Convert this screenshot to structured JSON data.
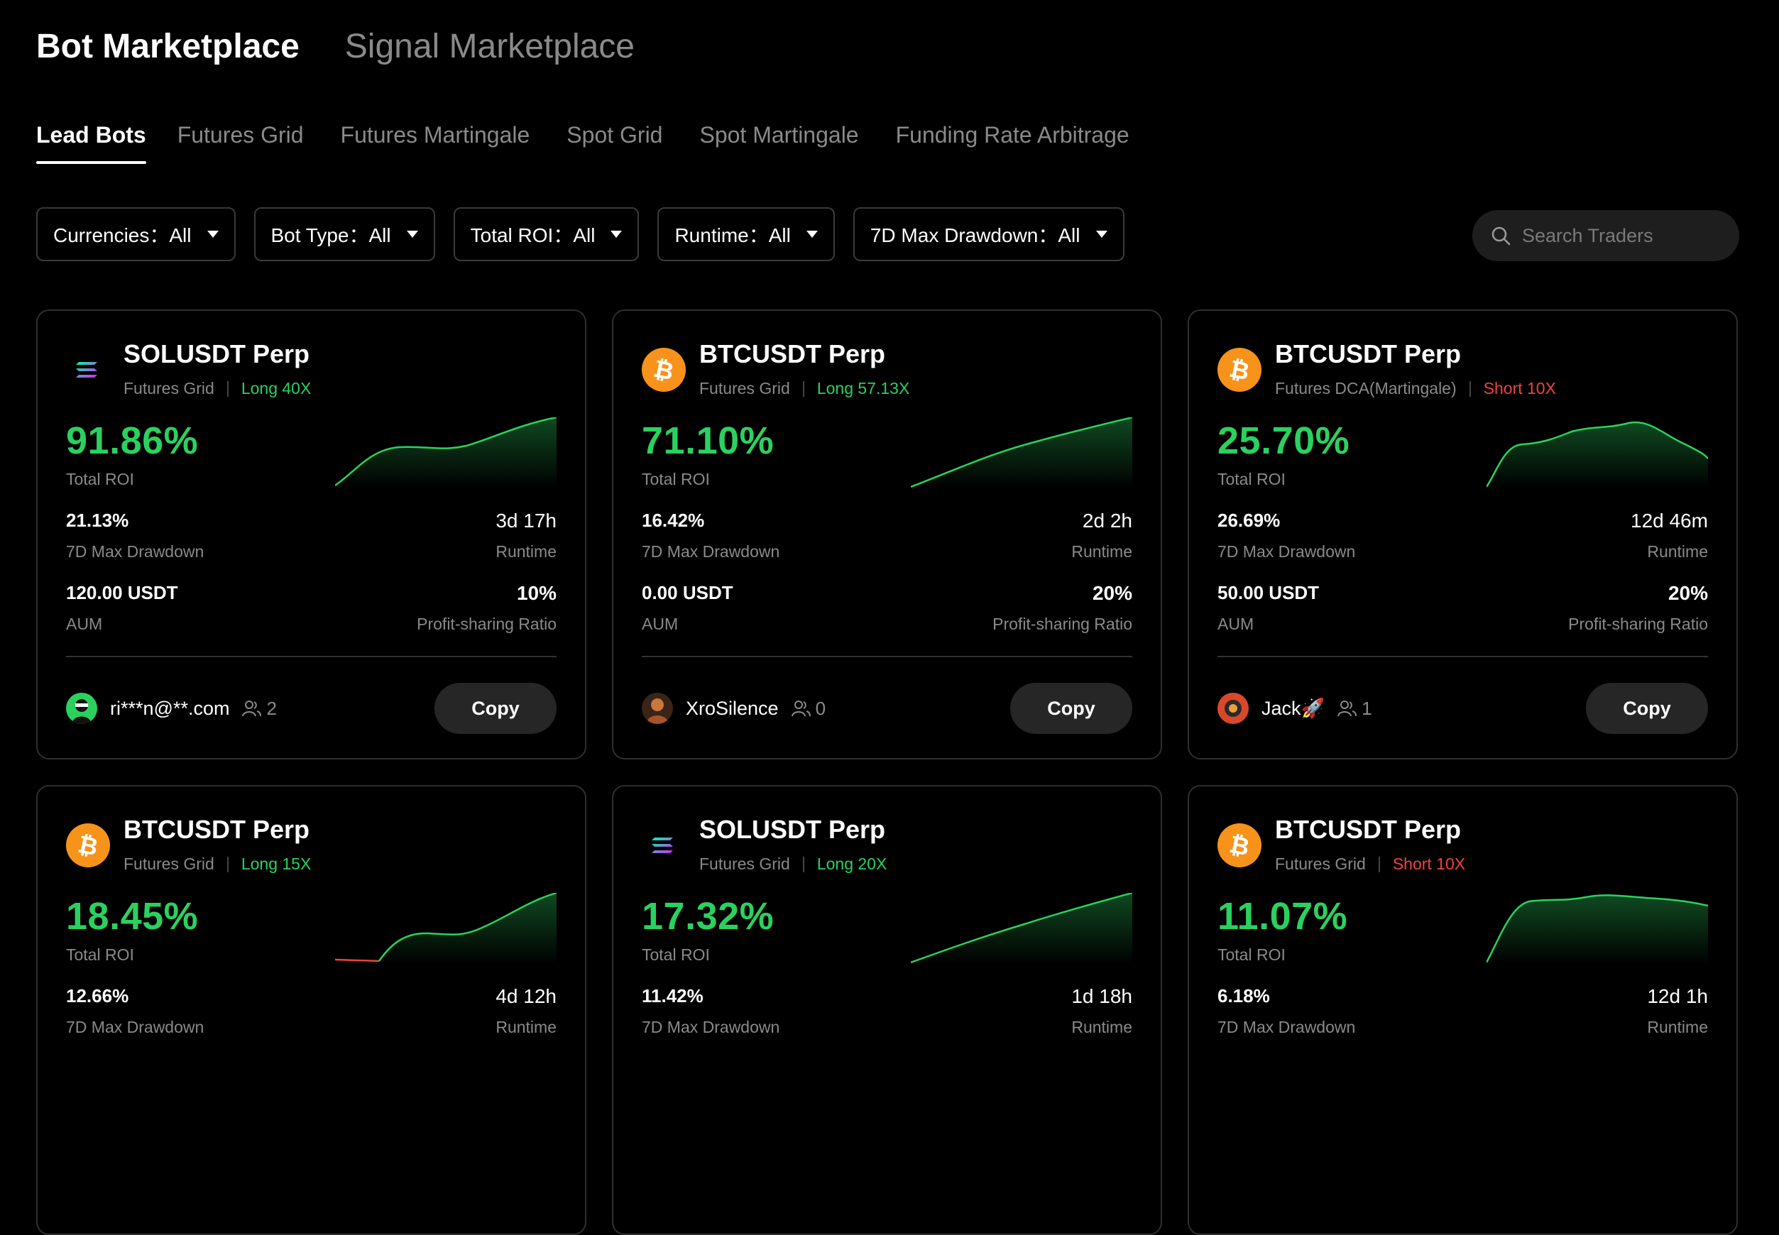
{
  "top_tabs": [
    "Bot Marketplace",
    "Signal Marketplace"
  ],
  "sub_tabs": [
    "Lead Bots",
    "Futures Grid",
    "Futures Martingale",
    "Spot Grid",
    "Spot Martingale",
    "Funding Rate Arbitrage"
  ],
  "filters": [
    "Currencies：All",
    "Bot Type：All",
    "Total ROI：All",
    "Runtime：All",
    "7D Max Drawdown：All"
  ],
  "search": {
    "placeholder": "Search Traders",
    "icon": "search-icon"
  },
  "labels": {
    "total_roi": "Total ROI",
    "max_drawdown": "7D Max Drawdown",
    "runtime": "Runtime",
    "aum": "AUM",
    "profit_sharing": "Profit-sharing Ratio",
    "copy": "Copy"
  },
  "colors": {
    "green": "#2bd15f",
    "red": "#f0433c",
    "btc": "#f7931a"
  },
  "cards": [
    {
      "coin": "sol",
      "pair": "SOLUSDT Perp",
      "type": "Futures Grid",
      "direction": "Long 40X",
      "dir_class": "long",
      "roi": "91.86%",
      "drawdown": "21.13%",
      "runtime": "3d 17h",
      "aum": "120.00 USDT",
      "ratio": "10%",
      "user": "ri***n@**.com",
      "followers": "2"
    },
    {
      "coin": "btc",
      "pair": "BTCUSDT Perp",
      "type": "Futures Grid",
      "direction": "Long 57.13X",
      "dir_class": "long",
      "roi": "71.10%",
      "drawdown": "16.42%",
      "runtime": "2d 2h",
      "aum": "0.00 USDT",
      "ratio": "20%",
      "user": "XroSilence",
      "followers": "0"
    },
    {
      "coin": "btc",
      "pair": "BTCUSDT Perp",
      "type": "Futures DCA(Martingale)",
      "direction": "Short 10X",
      "dir_class": "short",
      "roi": "25.70%",
      "drawdown": "26.69%",
      "runtime": "12d 46m",
      "aum": "50.00 USDT",
      "ratio": "20%",
      "user": "Jack🚀",
      "followers": "1"
    },
    {
      "coin": "btc",
      "pair": "BTCUSDT Perp",
      "type": "Futures Grid",
      "direction": "Long 15X",
      "dir_class": "long",
      "roi": "18.45%",
      "drawdown": "12.66%",
      "runtime": "4d 12h"
    },
    {
      "coin": "sol",
      "pair": "SOLUSDT Perp",
      "type": "Futures Grid",
      "direction": "Long 20X",
      "dir_class": "long",
      "roi": "17.32%",
      "drawdown": "11.42%",
      "runtime": "1d 18h"
    },
    {
      "coin": "btc",
      "pair": "BTCUSDT Perp",
      "type": "Futures Grid",
      "direction": "Short 10X",
      "dir_class": "short",
      "roi": "11.07%",
      "drawdown": "6.18%",
      "runtime": "12d 1h"
    }
  ]
}
